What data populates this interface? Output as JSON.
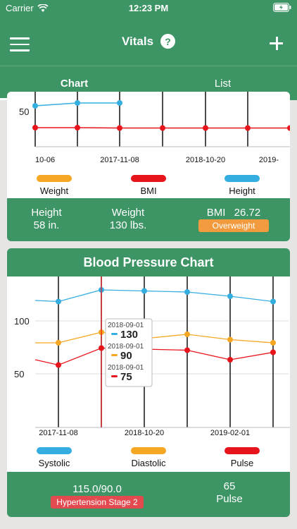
{
  "status_bar": {
    "carrier": "Carrier",
    "time": "12:23 PM"
  },
  "nav": {
    "title": "Vitals",
    "help_icon_text": "?"
  },
  "tabs": [
    {
      "label": "Chart",
      "active": true
    },
    {
      "label": "List",
      "active": false
    }
  ],
  "body_chart": {
    "legend": [
      {
        "label": "Weight",
        "color": "#f5a623"
      },
      {
        "label": "BMI",
        "color": "#e8141c"
      },
      {
        "label": "Height",
        "color": "#34aee0"
      }
    ],
    "footer": {
      "height_label": "Height",
      "height_value": "58 in.",
      "weight_label": "Weight",
      "weight_value": "130 lbs.",
      "bmi_label": "BMI",
      "bmi_value": "26.72",
      "bmi_badge": "Overweight"
    }
  },
  "bp_chart": {
    "title": "Blood Pressure Chart",
    "legend": [
      {
        "label": "Systolic",
        "color": "#34aee0"
      },
      {
        "label": "Diastolic",
        "color": "#f5a623"
      },
      {
        "label": "Pulse",
        "color": "#e8141c"
      }
    ],
    "tooltip": [
      {
        "date": "2018-09-01",
        "value": "130",
        "color": "#34aee0"
      },
      {
        "date": "2018-09-01",
        "value": "90",
        "color": "#f5a623"
      },
      {
        "date": "2018-09-01",
        "value": "75",
        "color": "#e8141c"
      }
    ],
    "footer": {
      "bp_value": "115.0/90.0",
      "bp_badge": "Hypertension Stage 2",
      "pulse_value": "65",
      "pulse_label": "Pulse"
    }
  },
  "chart_data": [
    {
      "type": "line",
      "x_tick_labels": [
        "10-06",
        "2017-11-08",
        "2018-10-20",
        "2019-"
      ],
      "y_tick_labels": [
        "50"
      ],
      "series": [
        {
          "name": "Height",
          "color": "#34aee0",
          "values": [
            58,
            62,
            62
          ]
        },
        {
          "name": "BMI",
          "color": "#e8141c",
          "values": [
            27,
            27,
            26.5,
            26.5,
            26.5,
            26.5,
            26.5
          ]
        }
      ]
    },
    {
      "type": "line",
      "x_tick_labels": [
        "2017-11-08",
        "2018-10-20",
        "2019-02-01"
      ],
      "y_tick_labels": [
        "100",
        "50"
      ],
      "ylim": [
        0,
        150
      ],
      "series": [
        {
          "name": "Systolic",
          "color": "#34aee0",
          "values": [
            120,
            119,
            130,
            129,
            128,
            124,
            119
          ]
        },
        {
          "name": "Diastolic",
          "color": "#f5a623",
          "values": [
            80,
            80,
            90,
            84,
            88,
            83,
            80
          ]
        },
        {
          "name": "Pulse",
          "color": "#e8141c",
          "values": [
            64,
            59,
            75,
            74,
            73,
            64,
            71
          ]
        }
      ],
      "highlighted": {
        "date": "2018-09-01",
        "Systolic": 130,
        "Diastolic": 90,
        "Pulse": 75
      }
    }
  ]
}
